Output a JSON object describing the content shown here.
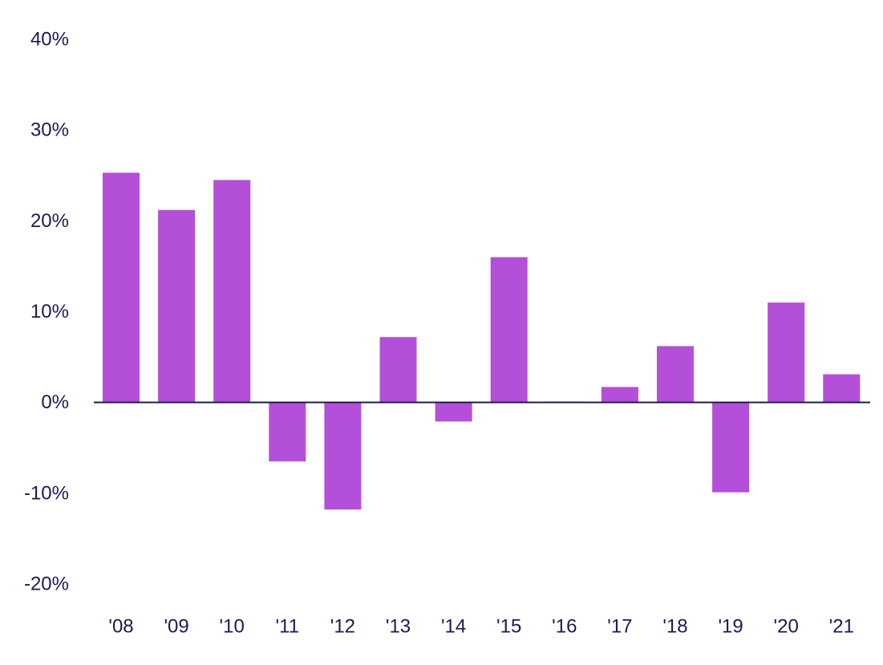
{
  "chart_data": {
    "type": "bar",
    "categories": [
      "'08",
      "'09",
      "'10",
      "'11",
      "'12",
      "'13",
      "'14",
      "'15",
      "'16",
      "'17",
      "'18",
      "'19",
      "'20",
      "'21"
    ],
    "series": [
      {
        "values": [
          25.3,
          21.2,
          24.5,
          -6.5,
          -11.8,
          7.2,
          -2.1,
          16.0,
          0.1,
          1.7,
          6.2,
          -9.9,
          11.0,
          3.1
        ]
      }
    ],
    "title": "",
    "xlabel": "",
    "ylabel": "",
    "ylim": [
      -20,
      40
    ],
    "yticks": [
      40,
      30,
      20,
      10,
      0,
      -10,
      -20
    ],
    "ytick_labels": [
      "40%",
      "30%",
      "20%",
      "10%",
      "0%",
      "-10%",
      "-20%"
    ],
    "grid": false,
    "legend": "none",
    "colors": {
      "bar": "#b44fd9",
      "axis": "#1d1a4e",
      "text": "#1d1a4e"
    }
  }
}
